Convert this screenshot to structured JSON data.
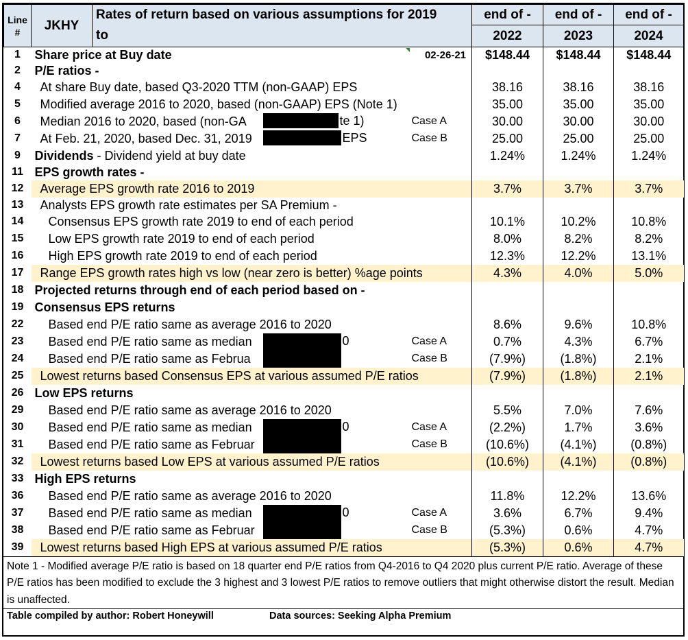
{
  "header": {
    "line_label_1": "Line",
    "line_label_2": "#",
    "ticker": "JKHY",
    "title_1": "Rates of return based on various assumptions for 2019",
    "title_2": "to",
    "periods": [
      {
        "label": "end of -",
        "year": "2022"
      },
      {
        "label": "end of -",
        "year": "2023"
      },
      {
        "label": "end of -",
        "year": "2024"
      }
    ]
  },
  "rows": [
    {
      "line": "1",
      "label": "Share price at Buy date",
      "bold": true,
      "indent": 0,
      "date": "02-26-21",
      "values": [
        "$148.44",
        "$148.44",
        "$148.44"
      ],
      "bold_values": true
    },
    {
      "line": "2",
      "label": "P/E ratios -",
      "bold": true,
      "indent": 0,
      "values": [
        "",
        "",
        ""
      ]
    },
    {
      "line": "4",
      "label": "At share Buy date, based Q3-2020 TTM (non-GAAP) EPS",
      "indent": 1,
      "values": [
        "38.16",
        "38.16",
        "38.16"
      ]
    },
    {
      "line": "5",
      "label": "Modified average 2016 to 2020, based (non-GAAP) EPS  (Note 1)",
      "indent": 1,
      "values": [
        "35.00",
        "35.00",
        "35.00"
      ]
    },
    {
      "line": "6",
      "label": "Median 2016 to 2020, based (non-GA",
      "label_tail": "te 1)",
      "redact": 1,
      "indent": 1,
      "case": "Case A",
      "values": [
        "30.00",
        "30.00",
        "30.00"
      ]
    },
    {
      "line": "7",
      "label": "At Feb. 21, 2020, based Dec. 31, 2019",
      "label_tail": "EPS",
      "redact": 2,
      "indent": 1,
      "case": "Case B",
      "values": [
        "25.00",
        "25.00",
        "25.00"
      ]
    },
    {
      "line": "9",
      "label": "Dividends",
      "label_rest": " -  Dividend yield at buy date",
      "bold": true,
      "indent": 0,
      "values": [
        "1.24%",
        "1.24%",
        "1.24%"
      ]
    },
    {
      "line": "11",
      "label": "EPS growth rates -",
      "bold": true,
      "indent": 0,
      "values": [
        "",
        "",
        ""
      ]
    },
    {
      "line": "12",
      "label": "Average EPS growth rate 2016 to 2019",
      "indent": 1,
      "highlight": true,
      "values": [
        "3.7%",
        "3.7%",
        "3.7%"
      ]
    },
    {
      "line": "13",
      "label": "Analysts EPS growth rate estimates per SA Premium -",
      "indent": 1,
      "values": [
        "",
        "",
        ""
      ]
    },
    {
      "line": "14",
      "label": "Consensus EPS growth rate 2019 to end of each period",
      "indent": 2,
      "values": [
        "10.1%",
        "10.2%",
        "10.8%"
      ]
    },
    {
      "line": "15",
      "label": "Low EPS growth rate 2019 to end of each period",
      "indent": 2,
      "values": [
        "8.0%",
        "8.2%",
        "8.2%"
      ]
    },
    {
      "line": "16",
      "label": "High EPS growth rate 2019 to end of each period",
      "indent": 2,
      "values": [
        "12.3%",
        "12.2%",
        "13.1%"
      ]
    },
    {
      "line": "17",
      "label": "Range EPS growth rates high vs low (near zero is better) %age points",
      "indent": 1,
      "highlight": true,
      "values": [
        "4.3%",
        "4.0%",
        "5.0%"
      ]
    },
    {
      "line": "18",
      "label": "Projected returns through end of each period based on -",
      "bold": true,
      "indent": 0,
      "values": [
        "",
        "",
        ""
      ]
    },
    {
      "line": "19",
      "label": "Consensus EPS returns",
      "bold": true,
      "indent": 0,
      "values": [
        "",
        "",
        ""
      ]
    },
    {
      "line": "22",
      "label": "Based end P/E ratio same as average 2016 to 2020",
      "indent": 2,
      "values": [
        "8.6%",
        "9.6%",
        "10.8%"
      ]
    },
    {
      "line": "23",
      "label": "Based end P/E ratio same as median",
      "label_tail": "0",
      "redact": 3,
      "indent": 2,
      "case": "Case A",
      "values": [
        "0.7%",
        "4.3%",
        "6.7%"
      ]
    },
    {
      "line": "24",
      "label": "Based end P/E ratio same as Februa",
      "redact": 3,
      "indent": 2,
      "case": "Case B",
      "values": [
        "(7.9%)",
        "(1.8%)",
        "2.1%"
      ]
    },
    {
      "line": "25",
      "label": "Lowest returns based Consensus EPS at various assumed P/E ratios",
      "indent": 1,
      "highlight": true,
      "values": [
        "(7.9%)",
        "(1.8%)",
        "2.1%"
      ]
    },
    {
      "line": "26",
      "label": "Low EPS returns",
      "bold": true,
      "indent": 0,
      "values": [
        "",
        "",
        ""
      ]
    },
    {
      "line": "29",
      "label": "Based end P/E ratio same as average 2016 to 2020",
      "indent": 2,
      "values": [
        "5.5%",
        "7.0%",
        "7.6%"
      ]
    },
    {
      "line": "30",
      "label": "Based end P/E ratio same as median",
      "label_tail": "0",
      "redact": 3,
      "indent": 2,
      "case": "Case A",
      "values": [
        "(2.2%)",
        "1.7%",
        "3.6%"
      ]
    },
    {
      "line": "31",
      "label": "Based end P/E ratio same as Februar",
      "redact": 3,
      "indent": 2,
      "case": "Case B",
      "values": [
        "(10.6%)",
        "(4.1%)",
        "(0.8%)"
      ]
    },
    {
      "line": "32",
      "label": "Lowest returns based Low EPS at various assumed P/E ratios",
      "indent": 1,
      "highlight": true,
      "values": [
        "(10.6%)",
        "(4.1%)",
        "(0.8%)"
      ]
    },
    {
      "line": "33",
      "label": "High  EPS returns",
      "bold": true,
      "indent": 0,
      "values": [
        "",
        "",
        ""
      ]
    },
    {
      "line": "36",
      "label": "Based end P/E ratio same as average 2016 to 2020",
      "indent": 2,
      "values": [
        "11.8%",
        "12.2%",
        "13.6%"
      ]
    },
    {
      "line": "37",
      "label": "Based end P/E ratio same as median",
      "label_tail": "0",
      "redact": 3,
      "indent": 2,
      "case": "Case A",
      "values": [
        "3.6%",
        "6.7%",
        "9.4%"
      ]
    },
    {
      "line": "38",
      "label": "Based end P/E ratio same as Februar",
      "redact": 3,
      "indent": 2,
      "case": "Case B",
      "values": [
        "(5.3%)",
        "0.6%",
        "4.7%"
      ]
    },
    {
      "line": "39",
      "label": "Lowest returns based High EPS at various assumed P/E ratios",
      "indent": 1,
      "highlight": true,
      "values": [
        "(5.3%)",
        "0.6%",
        "4.7%"
      ]
    }
  ],
  "note": "Note 1 - Modified average P/E ratio is based on 18 quarter end  P/E ratios from Q4-2016 to Q4 2020 plus current P/E ratio. Average of these P/E ratios has been modified to exclude the 3 highest and 3 lowest P/E ratios to remove outliers that might otherwise distort the result. Median is unaffected.",
  "footer": {
    "compiled_by": "Table compiled by author: Robert Honeywill",
    "sources": "Data sources: Seeking Alpha Premium"
  },
  "colors": {
    "header_fill": "#dce6f1",
    "highlight_fill": "#fff2cc",
    "redaction": "#000000",
    "comment_marker": "#2e8b2e"
  }
}
